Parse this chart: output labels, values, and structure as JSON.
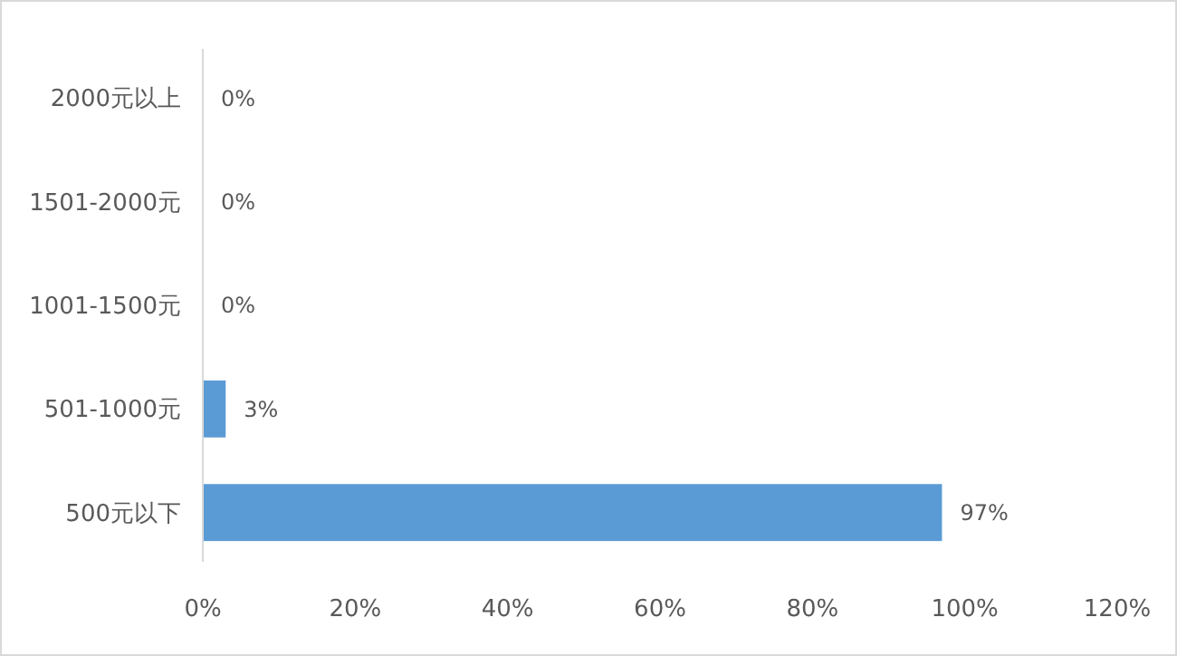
{
  "chart_data": {
    "type": "bar",
    "orientation": "horizontal",
    "categories": [
      "2000元以上",
      "1501-2000元",
      "1001-1500元",
      "501-1000元",
      "500元以下"
    ],
    "values": [
      0,
      0,
      0,
      3,
      97
    ],
    "value_labels": [
      "0%",
      "0%",
      "0%",
      "3%",
      "97%"
    ],
    "color": "#5b9bd5",
    "xlim": [
      0,
      120
    ],
    "xticks": [
      {
        "value": 0,
        "label": "0%"
      },
      {
        "value": 20,
        "label": "20%"
      },
      {
        "value": 40,
        "label": "40%"
      },
      {
        "value": 60,
        "label": "60%"
      },
      {
        "value": 80,
        "label": "80%"
      },
      {
        "value": 100,
        "label": "100%"
      },
      {
        "value": 120,
        "label": "120%"
      }
    ],
    "grid": false
  }
}
